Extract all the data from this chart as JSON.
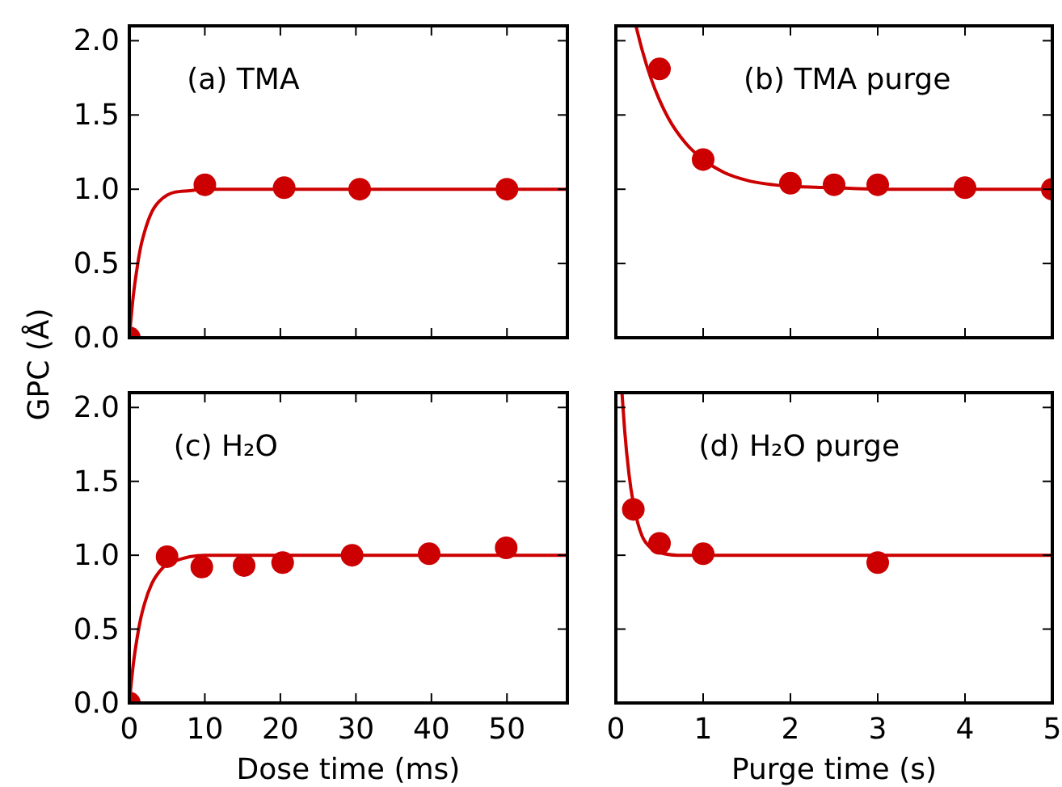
{
  "chart_data": [
    {
      "type": "scatter",
      "annotations": [
        "(a) TMA"
      ],
      "ylabel": "GPC (Å)",
      "xlim": [
        0,
        58
      ],
      "ylim": [
        0,
        2.1
      ],
      "xticks": [
        0,
        10,
        20,
        30,
        40,
        50
      ],
      "yticks": [
        {
          "value": 0,
          "label": "0.0"
        },
        {
          "value": 0.5,
          "label": "0.5"
        },
        {
          "value": 1,
          "label": "1.0"
        },
        {
          "value": 1.5,
          "label": "1.5"
        },
        {
          "value": 2,
          "label": "2.0"
        }
      ],
      "tick_labels": "y",
      "series": [
        {
          "type": "line",
          "marker": "none",
          "color": "#cc0000",
          "x": [
            0,
            0.5,
            1,
            1.5,
            2,
            3,
            4,
            5,
            6,
            8,
            10,
            58
          ],
          "values": [
            0,
            0.27,
            0.46,
            0.61,
            0.71,
            0.85,
            0.92,
            0.96,
            0.98,
            0.99,
            1.0,
            1.0
          ]
        },
        {
          "marker": "circle",
          "color": "#cc0000",
          "x": [
            0,
            10,
            20.5,
            30.5,
            50
          ],
          "values": [
            0,
            1.03,
            1.01,
            1.0,
            1.0
          ]
        }
      ]
    },
    {
      "type": "scatter",
      "annotations": [
        "(b) TMA purge"
      ],
      "xlim": [
        0,
        5
      ],
      "ylim": [
        0,
        2.1
      ],
      "xticks": [
        0,
        1,
        2,
        3,
        4,
        5
      ],
      "yticks": [
        {
          "value": 0,
          "label": null
        },
        {
          "value": 0.5,
          "label": null
        },
        {
          "value": 1,
          "label": null
        },
        {
          "value": 1.5,
          "label": null
        },
        {
          "value": 2,
          "label": null
        }
      ],
      "tick_labels": false,
      "series": [
        {
          "type": "line",
          "marker": "none",
          "color": "#cc0000",
          "x": [
            0.23,
            0.3,
            0.4,
            0.5,
            0.6,
            0.8,
            1.0,
            1.25,
            1.5,
            2,
            2.5,
            3,
            5
          ],
          "values": [
            2.1,
            1.94,
            1.75,
            1.6,
            1.48,
            1.31,
            1.2,
            1.11,
            1.06,
            1.02,
            1.01,
            1.0,
            1.0
          ]
        },
        {
          "marker": "circle",
          "color": "#cc0000",
          "x": [
            0.5,
            1,
            2,
            2.5,
            3,
            4,
            5
          ],
          "values": [
            1.81,
            1.2,
            1.04,
            1.03,
            1.03,
            1.01,
            1.0
          ]
        }
      ]
    },
    {
      "type": "scatter",
      "annotations": [
        "(c) H₂O"
      ],
      "xlabel": "Dose time (ms)",
      "xlim": [
        0,
        58
      ],
      "ylim": [
        0,
        2.1
      ],
      "xticks": [
        0,
        10,
        20,
        30,
        40,
        50
      ],
      "yticks": [
        {
          "value": 0,
          "label": "0.0"
        },
        {
          "value": 0.5,
          "label": "0.5"
        },
        {
          "value": 1,
          "label": "1.0"
        },
        {
          "value": 1.5,
          "label": "1.5"
        },
        {
          "value": 2,
          "label": "2.0"
        }
      ],
      "series": [
        {
          "type": "line",
          "marker": "none",
          "color": "#cc0000",
          "x": [
            0,
            0.5,
            1,
            1.5,
            2,
            3,
            4,
            5,
            6,
            8,
            10,
            58
          ],
          "values": [
            0,
            0.25,
            0.43,
            0.57,
            0.67,
            0.81,
            0.89,
            0.94,
            0.96,
            0.99,
            1.0,
            1.0
          ]
        },
        {
          "marker": "circle",
          "color": "#cc0000",
          "x": [
            0,
            5,
            9.6,
            15.2,
            20.3,
            29.5,
            39.7,
            49.9
          ],
          "values": [
            0,
            0.99,
            0.92,
            0.93,
            0.95,
            1.0,
            1.01,
            1.05
          ]
        }
      ]
    },
    {
      "type": "scatter",
      "annotations": [
        "(d) H₂O purge"
      ],
      "xlabel": "Purge time (s)",
      "xlim": [
        0,
        5
      ],
      "ylim": [
        0,
        2.1
      ],
      "xticks": [
        0,
        1,
        2,
        3,
        4,
        5
      ],
      "yticks": [
        {
          "value": 0,
          "label": null
        },
        {
          "value": 0.5,
          "label": null
        },
        {
          "value": 1,
          "label": null
        },
        {
          "value": 1.5,
          "label": null
        },
        {
          "value": 2,
          "label": null
        }
      ],
      "tick_labels": "x",
      "series": [
        {
          "type": "line",
          "marker": "none",
          "color": "#cc0000",
          "x": [
            0.07,
            0.1,
            0.15,
            0.2,
            0.25,
            0.3,
            0.4,
            0.5,
            0.7,
            5
          ],
          "values": [
            2.1,
            1.85,
            1.55,
            1.35,
            1.22,
            1.13,
            1.05,
            1.02,
            1.0,
            1.0
          ]
        },
        {
          "marker": "circle",
          "color": "#cc0000",
          "x": [
            0.2,
            0.5,
            1,
            3
          ],
          "values": [
            1.31,
            1.08,
            1.01,
            0.95
          ]
        }
      ]
    }
  ]
}
